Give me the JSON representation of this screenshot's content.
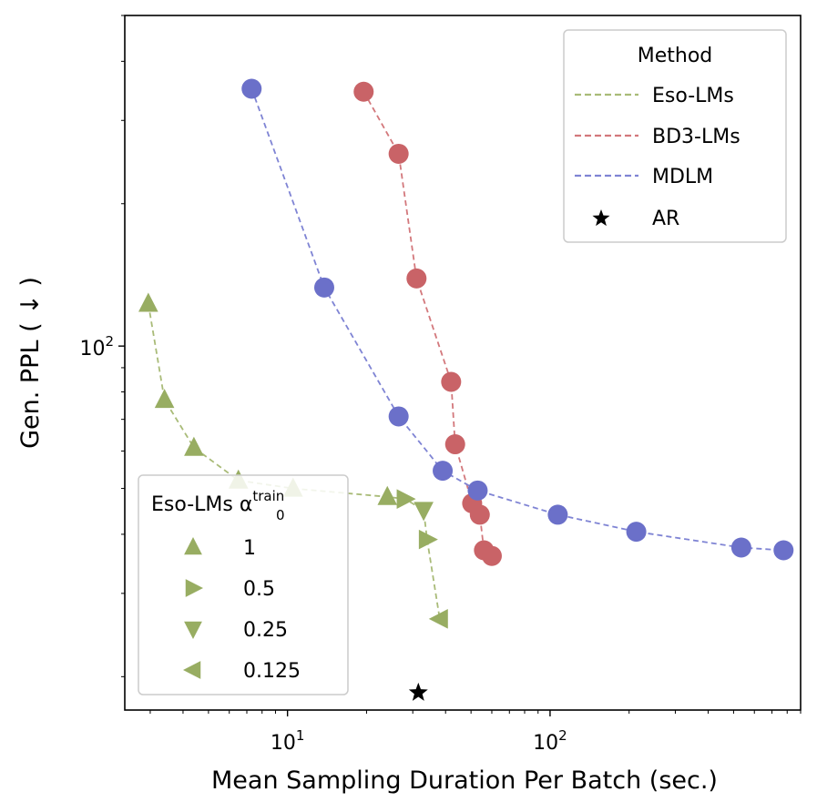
{
  "colors": {
    "eso": "#98ad62",
    "eso_line": "#a9bb78",
    "bd3": "#c96367",
    "bd3_line": "#d3787c",
    "mdlm": "#6b70c9",
    "mdlm_line": "#7f84d4",
    "ar": "#000000"
  },
  "chart_data": {
    "type": "scatter",
    "xlabel": "Mean Sampling Duration Per Batch (sec.)",
    "ylabel": "Gen. PPL ( ↓ )",
    "xscale": "log",
    "yscale": "log",
    "xlim": [
      2.4,
      900
    ],
    "ylim": [
      17.0,
      500
    ],
    "x_tick_labels": [
      "10",
      "1",
      "10",
      "2"
    ],
    "y_tick_labels": [
      "10",
      "2"
    ],
    "grid": false,
    "series": [
      {
        "name": "Eso-LMs",
        "line": "dashed",
        "points": [
          {
            "x": 2.95,
            "y": 123,
            "marker": "triangle-up"
          },
          {
            "x": 3.4,
            "y": 77,
            "marker": "triangle-up"
          },
          {
            "x": 4.4,
            "y": 61,
            "marker": "triangle-up"
          },
          {
            "x": 6.5,
            "y": 52,
            "marker": "triangle-up"
          },
          {
            "x": 10.5,
            "y": 50,
            "marker": "triangle-up"
          },
          {
            "x": 24,
            "y": 48,
            "marker": "triangle-up"
          },
          {
            "x": 28,
            "y": 47.5,
            "marker": "triangle-right"
          },
          {
            "x": 33,
            "y": 45,
            "marker": "triangle-down"
          },
          {
            "x": 34,
            "y": 39,
            "marker": "triangle-right"
          },
          {
            "x": 38,
            "y": 26.5,
            "marker": "triangle-left"
          }
        ]
      },
      {
        "name": "BD3-LMs",
        "line": "dashed",
        "points": [
          {
            "x": 19.5,
            "y": 345
          },
          {
            "x": 26.5,
            "y": 255
          },
          {
            "x": 31,
            "y": 139
          },
          {
            "x": 42,
            "y": 84
          },
          {
            "x": 43.5,
            "y": 62
          },
          {
            "x": 50.5,
            "y": 46.5
          },
          {
            "x": 54,
            "y": 44
          },
          {
            "x": 56,
            "y": 37
          },
          {
            "x": 60,
            "y": 36
          }
        ]
      },
      {
        "name": "MDLM",
        "line": "dashed",
        "points": [
          {
            "x": 7.3,
            "y": 350
          },
          {
            "x": 13.8,
            "y": 133
          },
          {
            "x": 26.5,
            "y": 71
          },
          {
            "x": 39,
            "y": 54.5
          },
          {
            "x": 53,
            "y": 49.5
          },
          {
            "x": 107,
            "y": 44
          },
          {
            "x": 213,
            "y": 40.5
          },
          {
            "x": 535,
            "y": 37.5
          },
          {
            "x": 775,
            "y": 37
          }
        ]
      },
      {
        "name": "AR",
        "marker": "star",
        "points": [
          {
            "x": 31.5,
            "y": 18.5
          }
        ]
      }
    ]
  },
  "legend_method": {
    "title": "Method",
    "items": [
      {
        "label": "Eso-LMs",
        "kind": "line",
        "color_key": "eso_line"
      },
      {
        "label": "BD3-LMs",
        "kind": "line",
        "color_key": "bd3_line"
      },
      {
        "label": "MDLM",
        "kind": "line",
        "color_key": "mdlm_line"
      },
      {
        "label": "AR",
        "kind": "star",
        "color_key": "ar"
      }
    ]
  },
  "legend_alpha": {
    "title": "Eso-LMs α",
    "title_subscript": "0",
    "title_superscript": "train",
    "items": [
      {
        "label": "1",
        "marker": "triangle-up"
      },
      {
        "label": "0.5",
        "marker": "triangle-right"
      },
      {
        "label": "0.25",
        "marker": "triangle-down"
      },
      {
        "label": "0.125",
        "marker": "triangle-left"
      }
    ]
  }
}
